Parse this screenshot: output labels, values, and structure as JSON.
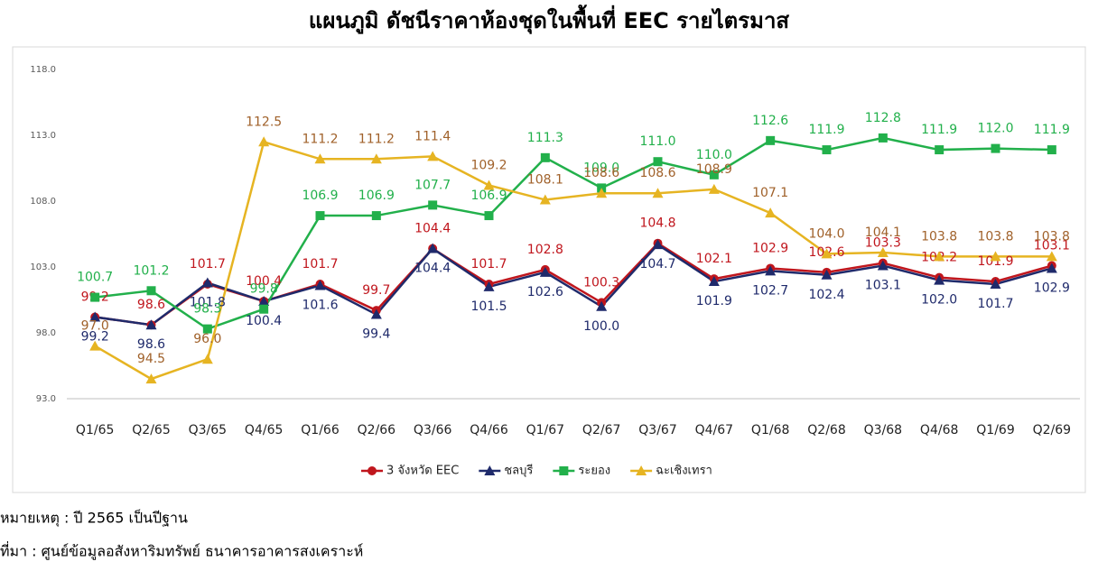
{
  "chart_data": {
    "type": "line",
    "title": "แผนภูมิ ดัชนีราคาห้องชุดในพื้นที่ EEC รายไตรมาส",
    "categories": [
      "Q1/65",
      "Q2/65",
      "Q3/65",
      "Q4/65",
      "Q1/66",
      "Q2/66",
      "Q3/66",
      "Q4/66",
      "Q1/67",
      "Q2/67",
      "Q3/67",
      "Q4/67",
      "Q1/68",
      "Q2/68",
      "Q3/68",
      "Q4/68",
      "Q1/69",
      "Q2/69"
    ],
    "ylim": [
      93,
      118
    ],
    "yticks": [
      {
        "value": 93,
        "label": "93.0"
      },
      {
        "value": 98,
        "label": "98.0"
      },
      {
        "value": 103,
        "label": "103.0"
      },
      {
        "value": 108,
        "label": "108.0"
      },
      {
        "value": 113,
        "label": "113.0"
      },
      {
        "value": 118,
        "label": "118.0"
      }
    ],
    "grid": false,
    "legend": "bottom",
    "series": [
      {
        "name": "3 จังหวัด EEC",
        "color": "#c0161d",
        "marker": "circle",
        "values": [
          99.2,
          98.6,
          101.7,
          100.4,
          101.7,
          99.7,
          104.4,
          101.7,
          102.8,
          100.3,
          104.8,
          102.1,
          102.9,
          102.6,
          103.3,
          102.2,
          101.9,
          103.1
        ],
        "value_labels": [
          "99.2",
          "98.6",
          "101.7",
          "100.4",
          "101.7",
          "99.7",
          "104.4",
          "101.7",
          "102.8",
          "100.3",
          "104.8",
          "102.1",
          "102.9",
          "102.6",
          "103.3",
          "102.2",
          "101.9",
          "103.1"
        ]
      },
      {
        "name": "ชลบุรี",
        "color": "#1f2a6b",
        "marker": "triangle",
        "values": [
          99.2,
          98.6,
          101.8,
          100.4,
          101.6,
          99.4,
          104.4,
          101.5,
          102.6,
          100.0,
          104.7,
          101.9,
          102.7,
          102.4,
          103.1,
          102.0,
          101.7,
          102.9
        ],
        "value_labels": [
          "99.2",
          "98.6",
          "101.8",
          "100.4",
          "101.6",
          "99.4",
          "104.4",
          "101.5",
          "102.6",
          "100.0",
          "104.7",
          "101.9",
          "102.7",
          "102.4",
          "103.1",
          "102.0",
          "101.7",
          "102.9"
        ]
      },
      {
        "name": "ระยอง",
        "color": "#22b04b",
        "marker": "square",
        "values": [
          100.7,
          101.2,
          98.3,
          99.8,
          106.9,
          106.9,
          107.7,
          106.9,
          111.3,
          109.0,
          111.0,
          110.0,
          112.6,
          111.9,
          112.8,
          111.9,
          112.0,
          111.9
        ],
        "value_labels": [
          "100.7",
          "101.2",
          "98.3",
          "99.8",
          "106.9",
          "106.9",
          "107.7",
          "106.9",
          "111.3",
          "109.0",
          "111.0",
          "110.0",
          "112.6",
          "111.9",
          "112.8",
          "111.9",
          "112.0",
          "111.9"
        ]
      },
      {
        "name": "ฉะเชิงเทรา",
        "color": "#e6b422",
        "marker": "triangle",
        "values": [
          97.0,
          94.5,
          96.0,
          112.5,
          111.2,
          111.2,
          111.4,
          109.2,
          108.1,
          108.6,
          108.6,
          108.9,
          107.1,
          104.0,
          104.1,
          103.8,
          103.8,
          103.8
        ],
        "value_labels": [
          "97.0",
          "94.5",
          "96.0",
          "112.5",
          "111.2",
          "111.2",
          "111.4",
          "109.2",
          "108.1",
          "108.6",
          "108.6",
          "108.9",
          "107.1",
          "104.0",
          "104.1",
          "103.8",
          "103.8",
          "103.8"
        ]
      }
    ]
  },
  "notes": [
    "หมายเหตุ : ปี 2565 เป็นปีฐาน",
    "ที่มา : ศูนย์ข้อมูลอสังหาริมทรัพย์ ธนาคารอาคารสงเคราะห์"
  ]
}
